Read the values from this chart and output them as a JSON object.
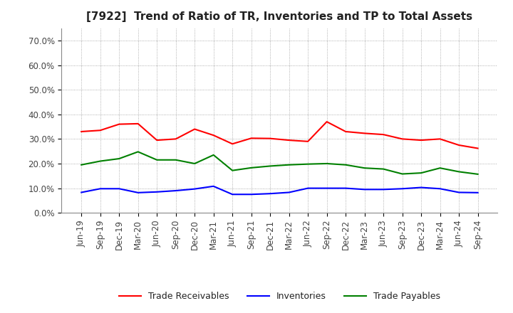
{
  "title": "[7922]  Trend of Ratio of TR, Inventories and TP to Total Assets",
  "labels": [
    "Jun-19",
    "Sep-19",
    "Dec-19",
    "Mar-20",
    "Jun-20",
    "Sep-20",
    "Dec-20",
    "Mar-21",
    "Jun-21",
    "Sep-21",
    "Dec-21",
    "Mar-22",
    "Jun-22",
    "Sep-22",
    "Dec-22",
    "Mar-23",
    "Jun-23",
    "Sep-23",
    "Dec-23",
    "Mar-24",
    "Jun-24",
    "Sep-24"
  ],
  "trade_receivables": [
    0.33,
    0.335,
    0.36,
    0.362,
    0.295,
    0.3,
    0.34,
    0.315,
    0.28,
    0.303,
    0.302,
    0.295,
    0.29,
    0.37,
    0.33,
    0.323,
    0.318,
    0.3,
    0.295,
    0.3,
    0.275,
    0.262
  ],
  "inventories": [
    0.083,
    0.098,
    0.098,
    0.082,
    0.085,
    0.09,
    0.097,
    0.108,
    0.075,
    0.075,
    0.078,
    0.083,
    0.1,
    0.1,
    0.1,
    0.095,
    0.095,
    0.098,
    0.103,
    0.098,
    0.083,
    0.082
  ],
  "trade_payables": [
    0.195,
    0.21,
    0.22,
    0.248,
    0.215,
    0.215,
    0.2,
    0.235,
    0.172,
    0.183,
    0.19,
    0.195,
    0.198,
    0.2,
    0.195,
    0.182,
    0.178,
    0.158,
    0.162,
    0.182,
    0.167,
    0.157
  ],
  "tr_color": "#ff0000",
  "inv_color": "#0000ff",
  "tp_color": "#008000",
  "ylim": [
    0.0,
    0.75
  ],
  "yticks": [
    0.0,
    0.1,
    0.2,
    0.3,
    0.4,
    0.5,
    0.6,
    0.7
  ],
  "legend_labels": [
    "Trade Receivables",
    "Inventories",
    "Trade Payables"
  ],
  "bg_color": "#ffffff",
  "plot_bg_color": "#ffffff",
  "title_fontsize": 11,
  "tick_fontsize": 8.5,
  "legend_fontsize": 9
}
